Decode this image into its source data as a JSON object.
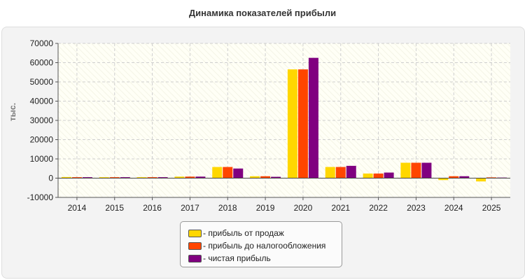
{
  "chart_data": {
    "type": "bar",
    "title": "Динамика показателей прибыли",
    "ylabel": "тыс.",
    "xlabel": "",
    "categories": [
      "2014",
      "2015",
      "2016",
      "2017",
      "2018",
      "2019",
      "2020",
      "2021",
      "2022",
      "2023",
      "2024",
      "2025"
    ],
    "ylim": [
      -10000,
      70000
    ],
    "yticks": [
      "70000",
      "60000",
      "50000",
      "40000",
      "30000",
      "20000",
      "10000",
      "0",
      "-10000"
    ],
    "grid": true,
    "legend_position": "bottom",
    "series": [
      {
        "name": "- прибыль от продаж",
        "color": "#ffd700",
        "values": [
          600,
          500,
          500,
          800,
          5800,
          1000,
          56500,
          5800,
          2400,
          8000,
          -1000,
          -1700
        ]
      },
      {
        "name": "- прибыль до налогообложения",
        "color": "#ff4500",
        "values": [
          500,
          500,
          500,
          800,
          5800,
          1000,
          56500,
          5800,
          2400,
          8000,
          1000,
          400
        ]
      },
      {
        "name": "- чистая прибыль",
        "color": "#800080",
        "values": [
          500,
          500,
          500,
          800,
          5000,
          700,
          62500,
          6400,
          2900,
          8000,
          1000,
          300
        ]
      }
    ]
  }
}
